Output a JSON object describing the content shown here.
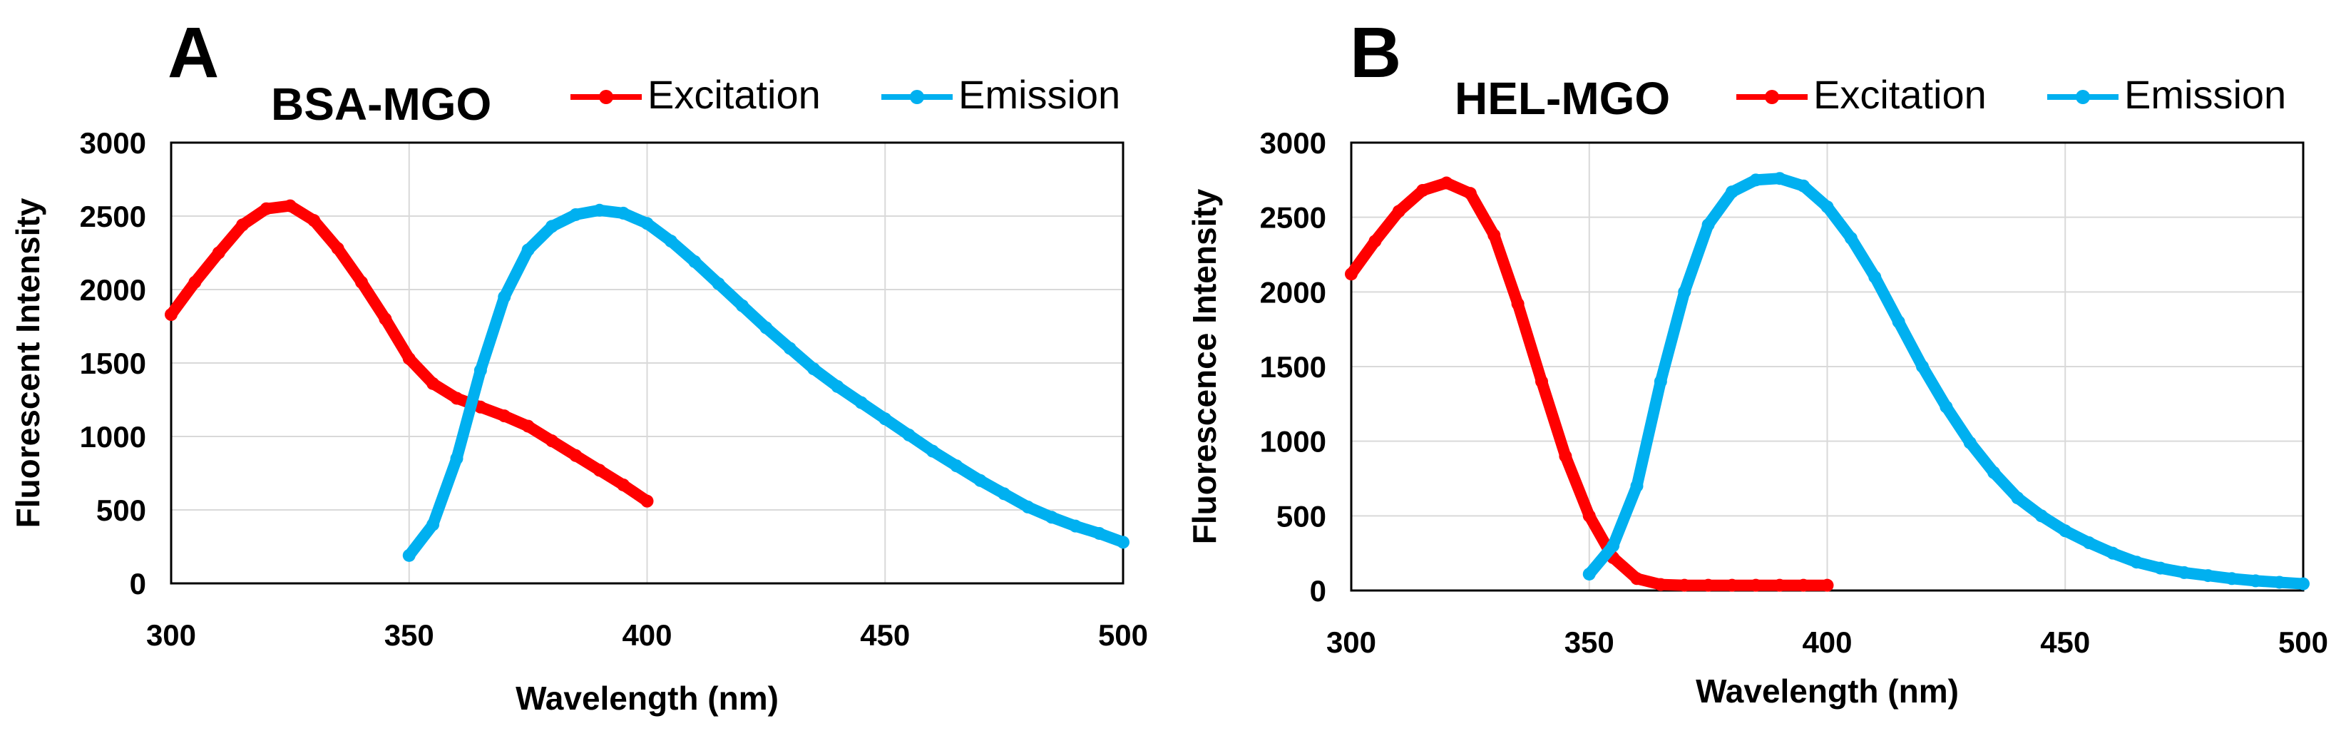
{
  "chart_data": [
    {
      "type": "line",
      "panel_label": "A",
      "title": "BSA-MGO",
      "xlabel": "Wavelength (nm)",
      "ylabel": "Fluorescent Intensity",
      "xlim": [
        300,
        500
      ],
      "ylim": [
        0,
        3000
      ],
      "xticks": [
        300,
        350,
        400,
        450,
        500
      ],
      "yticks": [
        0,
        500,
        1000,
        1500,
        2000,
        2500,
        3000
      ],
      "grid": true,
      "legend_position": "top",
      "series": [
        {
          "name": "Excitation",
          "color": "#ff0000",
          "x": [
            300,
            305,
            310,
            315,
            320,
            325,
            330,
            335,
            340,
            345,
            350,
            355,
            360,
            365,
            370,
            375,
            380,
            385,
            390,
            395,
            400
          ],
          "y": [
            1830,
            2050,
            2250,
            2440,
            2550,
            2570,
            2470,
            2280,
            2050,
            1800,
            1530,
            1360,
            1260,
            1200,
            1140,
            1070,
            970,
            870,
            770,
            670,
            560
          ]
        },
        {
          "name": "Emission",
          "color": "#00b0f0",
          "x": [
            350,
            355,
            360,
            365,
            370,
            375,
            380,
            385,
            390,
            395,
            400,
            405,
            410,
            415,
            420,
            425,
            430,
            435,
            440,
            445,
            450,
            455,
            460,
            465,
            470,
            475,
            480,
            485,
            490,
            495,
            500
          ],
          "y": [
            190,
            400,
            850,
            1450,
            1950,
            2270,
            2430,
            2510,
            2540,
            2520,
            2450,
            2330,
            2190,
            2040,
            1890,
            1740,
            1600,
            1460,
            1340,
            1230,
            1120,
            1010,
            900,
            800,
            700,
            610,
            520,
            450,
            390,
            340,
            280
          ]
        }
      ]
    },
    {
      "type": "line",
      "panel_label": "B",
      "title": "HEL-MGO",
      "xlabel": "Wavelength (nm)",
      "ylabel": "Fluorescence Intensity",
      "xlim": [
        300,
        500
      ],
      "ylim": [
        0,
        3000
      ],
      "xticks": [
        300,
        350,
        400,
        450,
        500
      ],
      "yticks": [
        0,
        500,
        1000,
        1500,
        2000,
        2500,
        3000
      ],
      "grid": true,
      "legend_position": "top",
      "series": [
        {
          "name": "Excitation",
          "color": "#ff0000",
          "x": [
            300,
            305,
            310,
            315,
            320,
            325,
            330,
            335,
            340,
            345,
            350,
            355,
            360,
            365,
            370,
            375,
            380,
            385,
            390,
            395,
            400
          ],
          "y": [
            2120,
            2340,
            2540,
            2680,
            2730,
            2660,
            2380,
            1920,
            1400,
            900,
            500,
            220,
            80,
            40,
            35,
            35,
            35,
            35,
            35,
            35,
            35
          ]
        },
        {
          "name": "Emission",
          "color": "#00b0f0",
          "x": [
            350,
            355,
            360,
            365,
            370,
            375,
            380,
            385,
            390,
            395,
            400,
            405,
            410,
            415,
            420,
            425,
            430,
            435,
            440,
            445,
            450,
            455,
            460,
            465,
            470,
            475,
            480,
            485,
            490,
            495,
            500
          ],
          "y": [
            110,
            300,
            700,
            1400,
            2000,
            2450,
            2670,
            2750,
            2760,
            2710,
            2570,
            2360,
            2100,
            1800,
            1500,
            1230,
            990,
            790,
            620,
            500,
            400,
            320,
            250,
            190,
            150,
            120,
            100,
            80,
            65,
            55,
            45
          ]
        }
      ]
    }
  ]
}
